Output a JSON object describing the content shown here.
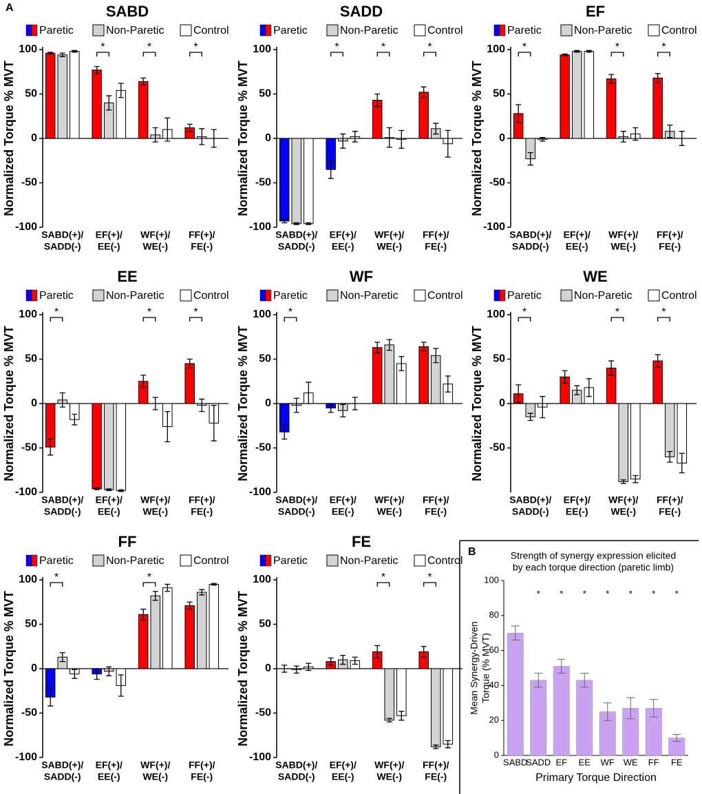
{
  "panel_labels": [
    "A",
    "B"
  ],
  "chart_data": [
    {
      "type": "grouped_bar",
      "title": "SABD",
      "ylabel": "Normalized Torque % MVT",
      "categories": [
        [
          "SABD(+)/",
          "SADD(-)"
        ],
        [
          "EF(+)/",
          "EE(-)"
        ],
        [
          "WF(+)/",
          "WE(-)"
        ],
        [
          "FF(+)/",
          "FE(-)"
        ]
      ],
      "legend_colors": [
        "#0000ff",
        "#ff0000"
      ],
      "series": [
        {
          "name": "Paretic",
          "colors": [
            "#ff0000",
            "#ff0000",
            "#ff0000",
            "#ff0000"
          ],
          "values": [
            96,
            77,
            64,
            12
          ],
          "errors": [
            1,
            4,
            4,
            4
          ]
        },
        {
          "name": "Non-Paretic",
          "color": "#d3d3d3",
          "values": [
            94,
            40,
            4,
            2
          ],
          "errors": [
            2,
            8,
            8,
            9
          ]
        },
        {
          "name": "Control",
          "color": "#ffffff",
          "values": [
            98,
            54,
            10,
            0
          ],
          "errors": [
            1,
            8,
            13,
            10
          ]
        }
      ],
      "significance": [
        {
          "category": 1,
          "label": "*"
        },
        {
          "category": 2,
          "label": "*"
        },
        {
          "category": 3,
          "label": "*"
        }
      ],
      "ylim": [
        -100,
        100
      ],
      "yticks": [
        -100,
        -50,
        0,
        50,
        100
      ]
    },
    {
      "type": "grouped_bar",
      "title": "SADD",
      "ylabel": "Normalized Torque % MVT",
      "categories": [
        [
          "SABD(+)/",
          "SADD(-)"
        ],
        [
          "EF(+)/",
          "EE(-)"
        ],
        [
          "WF(+)/",
          "WE(-)"
        ],
        [
          "FF(+)/",
          "FE(-)"
        ]
      ],
      "legend_colors": [
        "#0000ff",
        "#ff0000"
      ],
      "series": [
        {
          "name": "Paretic",
          "colors": [
            "#0000ff",
            "#0000ff",
            "#ff0000",
            "#ff0000"
          ],
          "values": [
            -93,
            -35,
            43,
            52
          ],
          "errors": [
            2,
            10,
            7,
            6
          ]
        },
        {
          "name": "Non-Paretic",
          "color": "#d3d3d3",
          "values": [
            -96,
            -3,
            1,
            11
          ],
          "errors": [
            1,
            8,
            11,
            6
          ]
        },
        {
          "name": "Control",
          "color": "#ffffff",
          "values": [
            -96,
            2,
            -1,
            -6
          ],
          "errors": [
            1,
            6,
            10,
            15
          ]
        }
      ],
      "significance": [
        {
          "category": 1,
          "label": "*"
        },
        {
          "category": 2,
          "label": "*"
        },
        {
          "category": 3,
          "label": "*"
        }
      ],
      "ylim": [
        -100,
        100
      ],
      "yticks": [
        -100,
        -50,
        0,
        50,
        100
      ]
    },
    {
      "type": "grouped_bar",
      "title": "EF",
      "ylabel": "Normalized Torque % MVT",
      "categories": [
        [
          "SABD(+)/",
          "SADD(-)"
        ],
        [
          "EF(+)/",
          "EE(-)"
        ],
        [
          "WF(+)/",
          "WE(-)"
        ],
        [
          "FF(+)/",
          "FE(-)"
        ]
      ],
      "legend_colors": [
        "#0000ff",
        "#ff0000"
      ],
      "series": [
        {
          "name": "Paretic",
          "colors": [
            "#ff0000",
            "#ff0000",
            "#ff0000",
            "#ff0000"
          ],
          "values": [
            28,
            94,
            67,
            68
          ],
          "errors": [
            10,
            1,
            5,
            5
          ]
        },
        {
          "name": "Non-Paretic",
          "color": "#d3d3d3",
          "values": [
            -23,
            98,
            2,
            8
          ],
          "errors": [
            7,
            1,
            6,
            7
          ]
        },
        {
          "name": "Control",
          "color": "#ffffff",
          "values": [
            -1,
            98,
            5,
            0
          ],
          "errors": [
            2,
            1,
            7,
            8
          ]
        }
      ],
      "significance": [
        {
          "category": 0,
          "label": "*"
        },
        {
          "category": 2,
          "label": "*"
        },
        {
          "category": 3,
          "label": "*"
        }
      ],
      "ylim": [
        -100,
        100
      ],
      "yticks": [
        -100,
        -50,
        0,
        50,
        100
      ]
    },
    {
      "type": "grouped_bar",
      "title": "EE",
      "ylabel": "Normalized Torque % MVT",
      "categories": [
        [
          "SABD(+)/",
          "SADD(-)"
        ],
        [
          "EF(+)/",
          "EE(-)"
        ],
        [
          "WF(+)/",
          "WE(-)"
        ],
        [
          "FF(+)/",
          "FE(-)"
        ]
      ],
      "legend_colors": [
        "#0000ff",
        "#ff0000"
      ],
      "series": [
        {
          "name": "Paretic",
          "colors": [
            "#ff0000",
            "#ff0000",
            "#ff0000",
            "#ff0000"
          ],
          "values": [
            -49,
            -96,
            25,
            45
          ],
          "errors": [
            9,
            1,
            7,
            5
          ]
        },
        {
          "name": "Non-Paretic",
          "color": "#d3d3d3",
          "values": [
            4,
            -97,
            0,
            -2
          ],
          "errors": [
            8,
            1,
            7,
            7
          ]
        },
        {
          "name": "Control",
          "color": "#ffffff",
          "values": [
            -18,
            -98,
            -26,
            -22
          ],
          "errors": [
            6,
            1,
            17,
            20
          ]
        }
      ],
      "significance": [
        {
          "category": 0,
          "label": "*"
        },
        {
          "category": 2,
          "label": "*"
        },
        {
          "category": 3,
          "label": "*"
        }
      ],
      "ylim": [
        -100,
        100
      ],
      "yticks": [
        -100,
        -50,
        0,
        50,
        100
      ]
    },
    {
      "type": "grouped_bar",
      "title": "WF",
      "ylabel": "Normalized Torque % MVT",
      "categories": [
        [
          "SABD(+)/",
          "SADD(-)"
        ],
        [
          "EF(+)/",
          "EE(-)"
        ],
        [
          "WF(+)/",
          "WE(-)"
        ],
        [
          "FF(+)/",
          "FE(-)"
        ]
      ],
      "legend_colors": [
        "#0000ff",
        "#ff0000"
      ],
      "series": [
        {
          "name": "Paretic",
          "colors": [
            "#0000ff",
            "#0000ff",
            "#ff0000",
            "#ff0000"
          ],
          "values": [
            -32,
            -5,
            63,
            64
          ],
          "errors": [
            8,
            5,
            6,
            5
          ]
        },
        {
          "name": "Non-Paretic",
          "color": "#d3d3d3",
          "values": [
            -2,
            -8,
            66,
            54
          ],
          "errors": [
            8,
            7,
            6,
            8
          ]
        },
        {
          "name": "Control",
          "color": "#ffffff",
          "values": [
            12,
            0,
            45,
            22
          ],
          "errors": [
            12,
            7,
            8,
            9
          ]
        }
      ],
      "significance": [
        {
          "category": 0,
          "label": "*"
        }
      ],
      "ylim": [
        -100,
        100
      ],
      "yticks": [
        -100,
        -50,
        0,
        50,
        100
      ]
    },
    {
      "type": "grouped_bar",
      "title": "WE",
      "ylabel": "Normalized Torque % MVT",
      "categories": [
        [
          "SABD(+)/",
          "SADD(-)"
        ],
        [
          "EF(+)/",
          "EE(-)"
        ],
        [
          "WF(+)/",
          "WE(-)"
        ],
        [
          "FF(+)/",
          "FE(-)"
        ]
      ],
      "legend_colors": [
        "#0000ff",
        "#ff0000"
      ],
      "series": [
        {
          "name": "Paretic",
          "colors": [
            "#ff0000",
            "#ff0000",
            "#ff0000",
            "#ff0000"
          ],
          "values": [
            11,
            30,
            40,
            48
          ],
          "errors": [
            10,
            7,
            8,
            7
          ]
        },
        {
          "name": "Non-Paretic",
          "color": "#d3d3d3",
          "values": [
            -15,
            15,
            -88,
            -60
          ],
          "errors": [
            4,
            5,
            2,
            6
          ]
        },
        {
          "name": "Control",
          "color": "#ffffff",
          "values": [
            -4,
            18,
            -85,
            -67
          ],
          "errors": [
            12,
            10,
            4,
            11
          ]
        }
      ],
      "significance": [
        {
          "category": 0,
          "label": "*"
        },
        {
          "category": 2,
          "label": "*"
        },
        {
          "category": 3,
          "label": "*"
        }
      ],
      "ylim": [
        -100,
        100
      ],
      "yticks": [
        -50,
        0,
        50,
        100
      ]
    },
    {
      "type": "grouped_bar",
      "title": "FF",
      "ylabel": "Normalized Torque % MVT",
      "categories": [
        [
          "SABD(+)/",
          "SADD(-)"
        ],
        [
          "EF(+)/",
          "EE(-)"
        ],
        [
          "WF(+)/",
          "WE(-)"
        ],
        [
          "FF(+)/",
          "FE(-)"
        ]
      ],
      "legend_colors": [
        "#0000ff",
        "#ff0000"
      ],
      "series": [
        {
          "name": "Paretic",
          "colors": [
            "#0000ff",
            "#0000ff",
            "#ff0000",
            "#ff0000"
          ],
          "values": [
            -32,
            -6,
            61,
            71
          ],
          "errors": [
            10,
            6,
            6,
            4
          ]
        },
        {
          "name": "Non-Paretic",
          "color": "#d3d3d3",
          "values": [
            13,
            -3,
            82,
            86
          ],
          "errors": [
            5,
            5,
            5,
            3
          ]
        },
        {
          "name": "Control",
          "color": "#ffffff",
          "values": [
            -6,
            -19,
            91,
            95
          ],
          "errors": [
            5,
            12,
            4,
            1
          ]
        }
      ],
      "significance": [
        {
          "category": 0,
          "label": "*"
        },
        {
          "category": 2,
          "label": "*"
        }
      ],
      "ylim": [
        -100,
        100
      ],
      "yticks": [
        -100,
        -50,
        0,
        50,
        100
      ]
    },
    {
      "type": "grouped_bar",
      "title": "FE",
      "ylabel": "Normalized Torque % MVT",
      "categories": [
        [
          "SABD(+)/",
          "SADD(-)"
        ],
        [
          "EF(+)/",
          "EE(-)"
        ],
        [
          "WF(+)/",
          "WE(-)"
        ],
        [
          "FF(+)/",
          "FE(-)"
        ]
      ],
      "legend_colors": [
        "#0000ff",
        "#ff0000"
      ],
      "series": [
        {
          "name": "Paretic",
          "colors": [
            "#ff0000",
            "#ff0000",
            "#ff0000",
            "#ff0000"
          ],
          "values": [
            0,
            8,
            19,
            19
          ],
          "errors": [
            4,
            4,
            7,
            6
          ]
        },
        {
          "name": "Non-Paretic",
          "color": "#d3d3d3",
          "values": [
            -1,
            10,
            -58,
            -88
          ],
          "errors": [
            4,
            5,
            2,
            2
          ]
        },
        {
          "name": "Control",
          "color": "#ffffff",
          "values": [
            2,
            9,
            -53,
            -85
          ],
          "errors": [
            4,
            4,
            5,
            4
          ]
        }
      ],
      "significance": [
        {
          "category": 2,
          "label": "*"
        },
        {
          "category": 3,
          "label": "*"
        }
      ],
      "ylim": [
        -100,
        100
      ],
      "yticks": [
        -100,
        -50,
        0,
        50,
        100
      ]
    },
    {
      "type": "bar",
      "title": [
        "Strength of synergy expression elicited",
        "by each torque direction (paretic limb)"
      ],
      "ylabel": [
        "Mean Synergy-Driven",
        "Torque (% MVT)"
      ],
      "xlabel": "Primary Torque Direction",
      "categories": [
        "SABD",
        "SADD",
        "EF",
        "EE",
        "WF",
        "WE",
        "FF",
        "FE"
      ],
      "values": [
        70,
        43,
        51,
        43,
        25,
        27,
        27,
        10
      ],
      "errors": [
        4,
        4,
        4,
        4,
        5,
        6,
        5,
        2
      ],
      "color": "#c9a3f2",
      "error_color": "#666666",
      "significance": [
        {
          "category": 1,
          "label": "*"
        },
        {
          "category": 2,
          "label": "*"
        },
        {
          "category": 3,
          "label": "*"
        },
        {
          "category": 4,
          "label": "*"
        },
        {
          "category": 5,
          "label": "*"
        },
        {
          "category": 6,
          "label": "*"
        },
        {
          "category": 7,
          "label": "*"
        }
      ],
      "ylim": [
        0,
        100
      ],
      "yticks": [
        0,
        20,
        40,
        60,
        80,
        100
      ]
    }
  ]
}
